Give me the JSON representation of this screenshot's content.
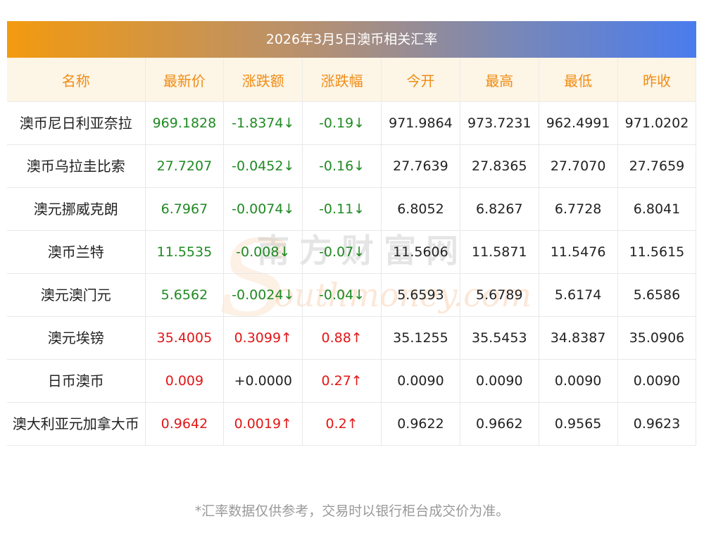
{
  "title": "2026年3月5日澳币相关汇率",
  "headers": [
    "名称",
    "最新价",
    "涨跌额",
    "涨跌幅",
    "今开",
    "最高",
    "最低",
    "昨收"
  ],
  "rows": [
    {
      "name": "澳币尼日利亚奈拉",
      "latest": "969.1828",
      "change": "-1.8374↓",
      "pct": "-0.19↓",
      "open": "971.9864",
      "high": "973.7231",
      "low": "962.4991",
      "prev": "971.0202",
      "trend": "down"
    },
    {
      "name": "澳币乌拉圭比索",
      "latest": "27.7207",
      "change": "-0.0452↓",
      "pct": "-0.16↓",
      "open": "27.7639",
      "high": "27.8365",
      "low": "27.7070",
      "prev": "27.7659",
      "trend": "down"
    },
    {
      "name": "澳元挪威克朗",
      "latest": "6.7967",
      "change": "-0.0074↓",
      "pct": "-0.11↓",
      "open": "6.8052",
      "high": "6.8267",
      "low": "6.7728",
      "prev": "6.8041",
      "trend": "down"
    },
    {
      "name": "澳币兰特",
      "latest": "11.5535",
      "change": "-0.008↓",
      "pct": "-0.07↓",
      "open": "11.5606",
      "high": "11.5871",
      "low": "11.5476",
      "prev": "11.5615",
      "trend": "down"
    },
    {
      "name": "澳元澳门元",
      "latest": "5.6562",
      "change": "-0.0024↓",
      "pct": "-0.04↓",
      "open": "5.6593",
      "high": "5.6789",
      "low": "5.6174",
      "prev": "5.6586",
      "trend": "down"
    },
    {
      "name": "澳元埃镑",
      "latest": "35.4005",
      "change": "0.3099↑",
      "pct": "0.88↑",
      "open": "35.1255",
      "high": "35.5453",
      "low": "34.8387",
      "prev": "35.0906",
      "trend": "up"
    },
    {
      "name": "日币澳币",
      "latest": "0.009",
      "change": "+0.0000",
      "pct": "0.27↑",
      "open": "0.0090",
      "high": "0.0090",
      "low": "0.0090",
      "prev": "0.0090",
      "trend": "up",
      "change_neutral": true
    },
    {
      "name": "澳大利亚元加拿大币",
      "latest": "0.9642",
      "change": "0.0019↑",
      "pct": "0.2↑",
      "open": "0.9622",
      "high": "0.9662",
      "low": "0.9565",
      "prev": "0.9623",
      "trend": "up"
    }
  ],
  "watermark": {
    "cn": "南方财富网",
    "en": "outhmoney.com",
    "s": "S"
  },
  "footnote": "*汇率数据仅供参考，交易时以银行柜台成交价为准。",
  "colors": {
    "up": "#e21616",
    "down": "#1f8a22",
    "header_text": "#f08c14",
    "header_bg": "#fdf5e6"
  }
}
